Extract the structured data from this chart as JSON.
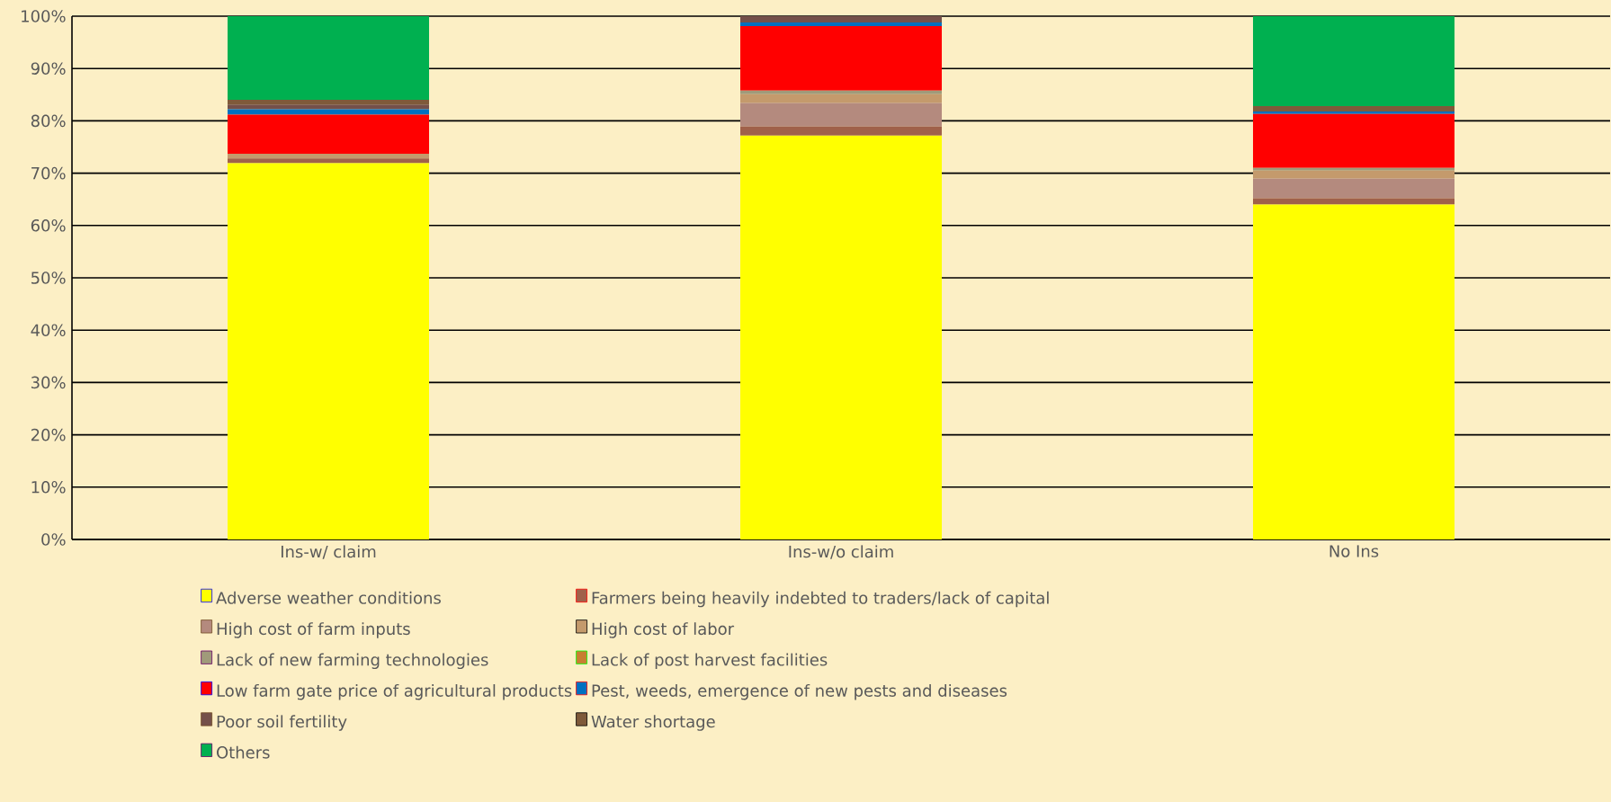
{
  "chart_data": {
    "type": "bar",
    "stacked": true,
    "categories": [
      "Ins-w/ claim",
      "Ins-w/o claim",
      "No Ins"
    ],
    "ylim": [
      0,
      100
    ],
    "yticks": [
      {
        "value": 0,
        "label": "0%"
      },
      {
        "value": 10,
        "label": "10%"
      },
      {
        "value": 20,
        "label": "20%"
      },
      {
        "value": 30,
        "label": "30%"
      },
      {
        "value": 40,
        "label": "40%"
      },
      {
        "value": 50,
        "label": "50%"
      },
      {
        "value": 60,
        "label": "60%"
      },
      {
        "value": 70,
        "label": "70%"
      },
      {
        "value": 80,
        "label": "80%"
      },
      {
        "value": 90,
        "label": "90%"
      },
      {
        "value": 100,
        "label": "100%"
      }
    ],
    "grid": "y",
    "legend": "bottom",
    "series": [
      {
        "name": "Adverse weather conditions",
        "color": "#ffff00",
        "values": [
          71.9,
          77.2,
          64.0
        ]
      },
      {
        "name": "Farmers being heavily indebted to traders/lack of capital",
        "color": "#a0614a",
        "values": [
          0.9,
          1.7,
          1.2
        ]
      },
      {
        "name": "High cost of farm inputs",
        "color": "#b48a7e",
        "values": [
          0,
          4.5,
          3.8
        ]
      },
      {
        "name": "High cost of labor",
        "color": "#c49a6c",
        "values": [
          0.9,
          1.7,
          1.5
        ]
      },
      {
        "name": "Lack of new farming technologies",
        "color": "#a09a7a",
        "values": [
          0,
          0.7,
          0.5
        ]
      },
      {
        "name": "Lack of post harvest facilities",
        "color": "#c87e32",
        "values": [
          0,
          0,
          0
        ]
      },
      {
        "name": "Low farm gate price of agricultural products",
        "color": "#ff0000",
        "values": [
          7.5,
          12.3,
          10.3
        ]
      },
      {
        "name": "Pest, weeds, emergence of new pests and diseases",
        "color": "#0070c0",
        "values": [
          1.0,
          0.7,
          0.5
        ]
      },
      {
        "name": "Poor soil fertility",
        "color": "#74504a",
        "values": [
          0.9,
          1.2,
          0
        ]
      },
      {
        "name": "Water shortage",
        "color": "#7f5a3a",
        "values": [
          0.9,
          0,
          1.0
        ]
      },
      {
        "name": "Others",
        "color": "#00b050",
        "values": [
          16.0,
          0,
          17.2
        ]
      }
    ]
  }
}
